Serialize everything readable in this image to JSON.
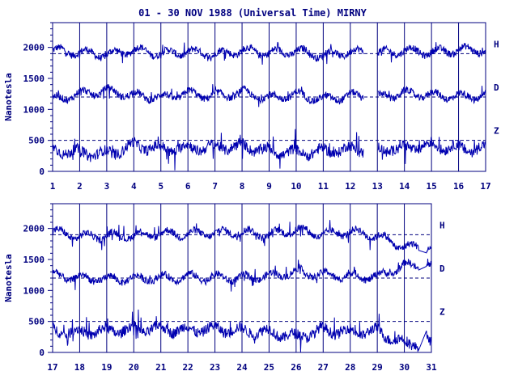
{
  "title": "01 - 30 NOV 1988 (Universal Time) MIRNY",
  "ylabel": "Nanotesla",
  "colors": {
    "ink": "#00007f",
    "trace": "#0000b0",
    "background": "#ffffff"
  },
  "chart_data": [
    {
      "type": "line",
      "title": "01 - 30 NOV 1988 (Universal Time) MIRNY",
      "xlabel": "",
      "ylabel": "Nanotesla",
      "x_ticks": [
        "1",
        "2",
        "3",
        "4",
        "5",
        "6",
        "7",
        "8",
        "9",
        "10",
        "11",
        "12",
        "13",
        "14",
        "15",
        "16",
        "17"
      ],
      "xlim": [
        1,
        17
      ],
      "ylim": [
        0,
        2400
      ],
      "y_ticks": [
        "0",
        "500",
        "1000",
        "1500",
        "2000"
      ],
      "grid": "vertical lines at each day",
      "gaps": [
        [
          12.5,
          13.0
        ]
      ],
      "series": [
        {
          "name": "H",
          "baseline": 1900,
          "values": [
            1950,
            1920,
            1880,
            1960,
            1900,
            1930,
            1890,
            1950,
            1910,
            1940,
            1870,
            1930,
            1900,
            1950,
            1920,
            1960
          ]
        },
        {
          "name": "D",
          "baseline": 1200,
          "values": [
            1150,
            1250,
            1300,
            1230,
            1190,
            1260,
            1210,
            1270,
            1180,
            1240,
            1160,
            1220,
            1200,
            1260,
            1230,
            1210
          ]
        },
        {
          "name": "Z",
          "baseline": 500,
          "values": [
            350,
            300,
            280,
            420,
            360,
            380,
            390,
            410,
            330,
            300,
            320,
            360,
            350,
            380,
            420,
            370
          ]
        }
      ]
    },
    {
      "type": "line",
      "title": "",
      "xlabel": "",
      "ylabel": "Nanotesla",
      "x_ticks": [
        "17",
        "18",
        "19",
        "20",
        "21",
        "22",
        "23",
        "24",
        "25",
        "26",
        "27",
        "28",
        "29",
        "30",
        "31"
      ],
      "xlim": [
        17,
        31
      ],
      "ylim": [
        0,
        2400
      ],
      "y_ticks": [
        "0",
        "500",
        "1000",
        "1500",
        "2000"
      ],
      "grid": "vertical lines at each day",
      "gaps": [
        [
          30.55,
          30.8
        ]
      ],
      "series": [
        {
          "name": "H",
          "baseline": 1900,
          "values": [
            1950,
            1870,
            1880,
            1890,
            1920,
            1910,
            1930,
            1940,
            1900,
            1980,
            1900,
            1950,
            1880,
            1700
          ]
        },
        {
          "name": "D",
          "baseline": 1200,
          "values": [
            1250,
            1200,
            1180,
            1190,
            1200,
            1220,
            1210,
            1200,
            1230,
            1300,
            1250,
            1230,
            1220,
            1400
          ]
        },
        {
          "name": "Z",
          "baseline": 500,
          "values": [
            350,
            320,
            350,
            370,
            380,
            360,
            380,
            350,
            330,
            250,
            360,
            330,
            340,
            150
          ]
        }
      ]
    }
  ]
}
